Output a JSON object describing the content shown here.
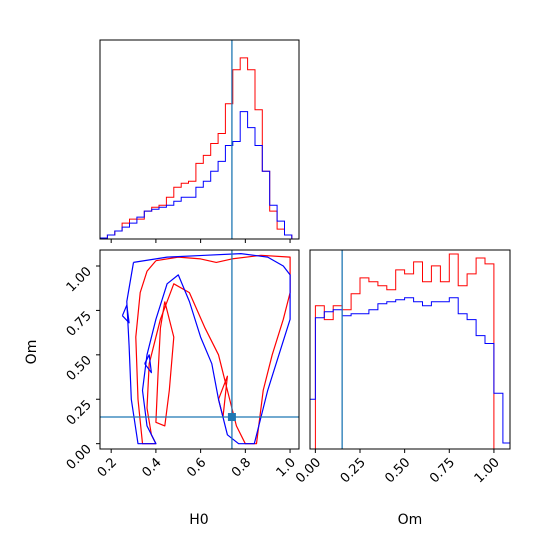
{
  "chart_data": [
    {
      "type": "histogram",
      "panel": "H0 marginal",
      "xlim": [
        0.15,
        1.04
      ],
      "truth": 0.74,
      "bin_edges": [
        0.15,
        0.183,
        0.216,
        0.249,
        0.282,
        0.315,
        0.348,
        0.381,
        0.414,
        0.447,
        0.48,
        0.513,
        0.546,
        0.579,
        0.612,
        0.645,
        0.678,
        0.711,
        0.744,
        0.777,
        0.81,
        0.843,
        0.876,
        0.909,
        0.942,
        0.975,
        1.008
      ],
      "series": [
        {
          "color": "#ff0000",
          "values": [
            0.005,
            0.02,
            0.04,
            0.08,
            0.1,
            0.1,
            0.14,
            0.16,
            0.17,
            0.21,
            0.26,
            0.28,
            0.29,
            0.38,
            0.42,
            0.48,
            0.53,
            0.68,
            0.85,
            0.91,
            0.85,
            0.65,
            0.34,
            0.14,
            0.05,
            0.02
          ]
        },
        {
          "color": "#0000ff",
          "values": [
            0.005,
            0.02,
            0.04,
            0.06,
            0.08,
            0.11,
            0.14,
            0.15,
            0.16,
            0.17,
            0.19,
            0.21,
            0.21,
            0.26,
            0.29,
            0.34,
            0.39,
            0.47,
            0.49,
            0.64,
            0.56,
            0.47,
            0.34,
            0.17,
            0.09,
            0.02
          ]
        }
      ]
    },
    {
      "type": "contour",
      "panel": "H0 vs Om",
      "xlabel": "H0",
      "ylabel": "Om",
      "xlim": [
        0.15,
        1.04
      ],
      "ylim": [
        -0.03,
        1.09
      ],
      "xticks": [
        "0.2",
        "0.4",
        "0.6",
        "0.8",
        "1.0"
      ],
      "yticks": [
        "0.00",
        "0.25",
        "0.50",
        "0.75",
        "1.00"
      ],
      "truth": {
        "H0": 0.74,
        "Om": 0.15
      },
      "series": [
        {
          "color": "#ff0000",
          "contours": [
            [
              [
                0.4,
                1.03
              ],
              [
                0.5,
                1.05
              ],
              [
                0.6,
                1.04
              ],
              [
                0.67,
                1.02
              ],
              [
                0.74,
                1.04
              ],
              [
                0.87,
                1.06
              ],
              [
                1.0,
                1.05
              ],
              [
                1.0,
                0.85
              ],
              [
                0.97,
                0.7
              ],
              [
                0.92,
                0.5
              ],
              [
                0.88,
                0.3
              ],
              [
                0.85,
                0.0
              ],
              [
                0.8,
                0.0
              ],
              [
                0.76,
                0.1
              ],
              [
                0.72,
                0.3
              ],
              [
                0.68,
                0.5
              ],
              [
                0.62,
                0.65
              ],
              [
                0.55,
                0.85
              ],
              [
                0.48,
                0.9
              ],
              [
                0.42,
                0.7
              ],
              [
                0.37,
                0.45
              ],
              [
                0.36,
                0.2
              ],
              [
                0.38,
                0.05
              ],
              [
                0.4,
                0.0
              ],
              [
                0.34,
                0.0
              ],
              [
                0.32,
                0.25
              ],
              [
                0.31,
                0.6
              ],
              [
                0.33,
                0.85
              ],
              [
                0.36,
                0.97
              ],
              [
                0.4,
                1.03
              ]
            ],
            [
              [
                0.44,
                0.8
              ],
              [
                0.48,
                0.6
              ],
              [
                0.46,
                0.3
              ],
              [
                0.44,
                0.1
              ],
              [
                0.4,
                0.12
              ],
              [
                0.41,
                0.4
              ],
              [
                0.42,
                0.65
              ],
              [
                0.44,
                0.8
              ]
            ],
            [
              [
                0.68,
                0.25
              ],
              [
                0.72,
                0.38
              ],
              [
                0.7,
                0.15
              ],
              [
                0.68,
                0.25
              ]
            ]
          ]
        },
        {
          "color": "#0000ff",
          "contours": [
            [
              [
                0.3,
                1.02
              ],
              [
                0.45,
                1.05
              ],
              [
                0.62,
                1.06
              ],
              [
                0.78,
                1.07
              ],
              [
                0.9,
                1.05
              ],
              [
                0.97,
                1.0
              ],
              [
                1.0,
                0.95
              ],
              [
                1.0,
                0.7
              ],
              [
                0.95,
                0.5
              ],
              [
                0.9,
                0.3
              ],
              [
                0.86,
                0.1
              ],
              [
                0.84,
                0.0
              ],
              [
                0.77,
                0.0
              ],
              [
                0.72,
                0.05
              ],
              [
                0.68,
                0.25
              ],
              [
                0.65,
                0.45
              ],
              [
                0.6,
                0.6
              ],
              [
                0.55,
                0.8
              ],
              [
                0.5,
                0.95
              ],
              [
                0.45,
                0.9
              ],
              [
                0.4,
                0.7
              ],
              [
                0.36,
                0.5
              ],
              [
                0.34,
                0.3
              ],
              [
                0.36,
                0.1
              ],
              [
                0.4,
                0.0
              ],
              [
                0.32,
                0.0
              ],
              [
                0.29,
                0.25
              ],
              [
                0.28,
                0.55
              ],
              [
                0.27,
                0.8
              ],
              [
                0.3,
                1.02
              ]
            ],
            [
              [
                0.25,
                0.72
              ],
              [
                0.28,
                0.68
              ],
              [
                0.27,
                0.78
              ],
              [
                0.25,
                0.72
              ]
            ],
            [
              [
                0.35,
                0.45
              ],
              [
                0.38,
                0.4
              ],
              [
                0.37,
                0.5
              ],
              [
                0.35,
                0.45
              ]
            ]
          ]
        }
      ]
    },
    {
      "type": "histogram",
      "panel": "Om marginal",
      "xlabel": "Om",
      "xlim": [
        -0.03,
        1.09
      ],
      "xticks": [
        "0.00",
        "0.25",
        "0.50",
        "0.75",
        "1.00"
      ],
      "truth": 0.15,
      "bin_edges": [
        -0.03,
        0.0,
        0.05,
        0.1,
        0.15,
        0.2,
        0.25,
        0.3,
        0.35,
        0.4,
        0.45,
        0.5,
        0.55,
        0.6,
        0.65,
        0.7,
        0.75,
        0.8,
        0.85,
        0.9,
        0.95,
        1.0,
        1.05,
        1.09
      ],
      "series": [
        {
          "color": "#ff0000",
          "values": [
            0.0,
            0.72,
            0.65,
            0.72,
            0.7,
            0.78,
            0.86,
            0.84,
            0.82,
            0.8,
            0.9,
            0.88,
            0.94,
            0.84,
            0.92,
            0.84,
            0.98,
            0.82,
            0.88,
            0.96,
            0.93,
            0.0,
            0.0
          ]
        },
        {
          "color": "#0000ff",
          "values": [
            0.25,
            0.66,
            0.69,
            0.7,
            0.67,
            0.68,
            0.68,
            0.7,
            0.73,
            0.74,
            0.75,
            0.76,
            0.74,
            0.72,
            0.74,
            0.74,
            0.76,
            0.68,
            0.65,
            0.57,
            0.53,
            0.28,
            0.03
          ]
        }
      ]
    }
  ]
}
